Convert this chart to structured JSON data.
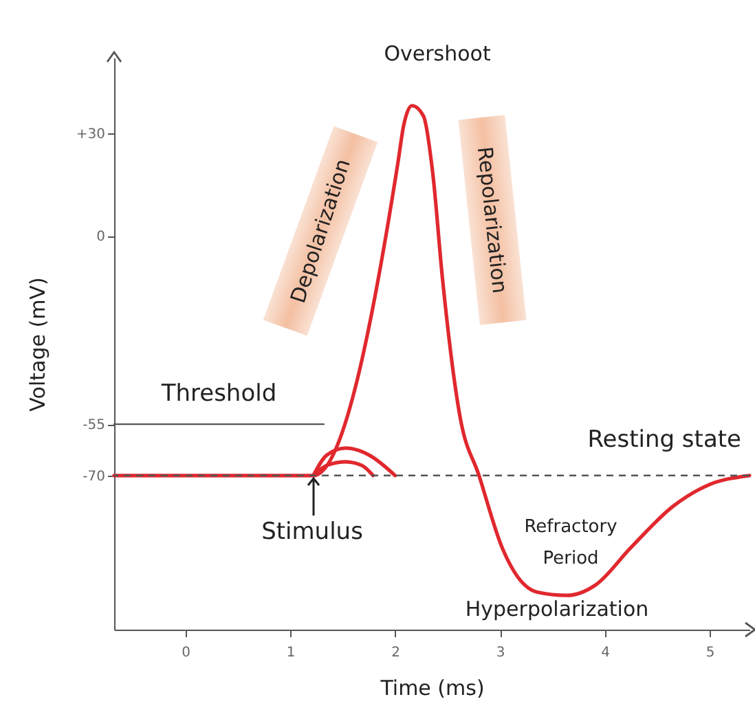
{
  "chart_data": {
    "type": "line",
    "xlabel": "Time (ms)",
    "ylabel": "Voltage (mV)",
    "xlim": [
      -0.68,
      5.38
    ],
    "ylim": [
      -115,
      52
    ],
    "xticks": [
      0,
      1,
      2,
      3,
      4,
      5
    ],
    "yticks": [
      {
        "value": 30,
        "label": "+30"
      },
      0,
      -55,
      -70
    ],
    "series": [
      {
        "color": "#e0282e",
        "x": [
          -0.68,
          1.22,
          2.03,
          2.08,
          2.16,
          2.27,
          2.36,
          2.45,
          2.62,
          2.8,
          3.02,
          3.35,
          3.64,
          3.91,
          4.25,
          4.65,
          4.97,
          5.38
        ],
        "values": [
          -70,
          -70,
          22,
          32,
          38,
          35,
          18,
          -12,
          -53,
          -70,
          -91,
          -104,
          -105,
          -102,
          -91,
          -79,
          -73,
          -70
        ]
      },
      {
        "color": "#e0282e",
        "x": [
          1.22,
          1.35,
          1.53,
          1.75,
          2.0
        ],
        "values": [
          -70,
          -64,
          -62,
          -64,
          -70
        ]
      },
      {
        "color": "#e0282e",
        "x": [
          1.22,
          1.35,
          1.53,
          1.68,
          1.79
        ],
        "values": [
          -70,
          -67,
          -66,
          -67,
          -70
        ]
      },
      {
        "name": "Threshold",
        "color": "#555555",
        "x": [
          -0.68,
          1.32
        ],
        "values": [
          -55,
          -55
        ]
      }
    ],
    "ref_lines": [
      {
        "axis": "y",
        "value": -70,
        "label": "Resting state",
        "color": "#555555",
        "line_style": "dashed"
      }
    ],
    "annotations": [
      "Overshoot",
      "Depolarization",
      "Repolarization",
      "Stimulus",
      "Refractory\nPeriod",
      "Hyperpolarization"
    ]
  }
}
